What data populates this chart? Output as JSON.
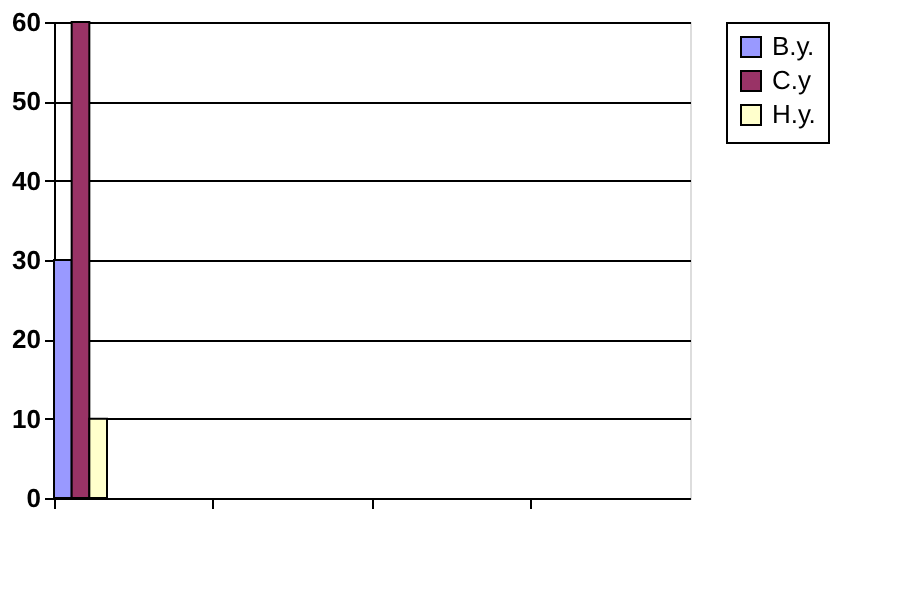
{
  "chart_data": {
    "type": "bar",
    "categories": [
      null,
      null,
      null,
      null
    ],
    "series": [
      {
        "name": "В.у.",
        "color": "#9999ff",
        "values": [
          30,
          null,
          null,
          null
        ]
      },
      {
        "name": "С.у",
        "color": "#993366",
        "values": [
          60,
          null,
          null,
          null
        ]
      },
      {
        "name": "Н.у.",
        "color": "#ffffcc",
        "values": [
          10,
          null,
          null,
          null
        ]
      }
    ],
    "ylim": [
      0,
      60
    ],
    "yticks": [
      0,
      10,
      20,
      30,
      40,
      50,
      60
    ],
    "grid": "y",
    "legend": "right",
    "tick_labels": "y"
  }
}
